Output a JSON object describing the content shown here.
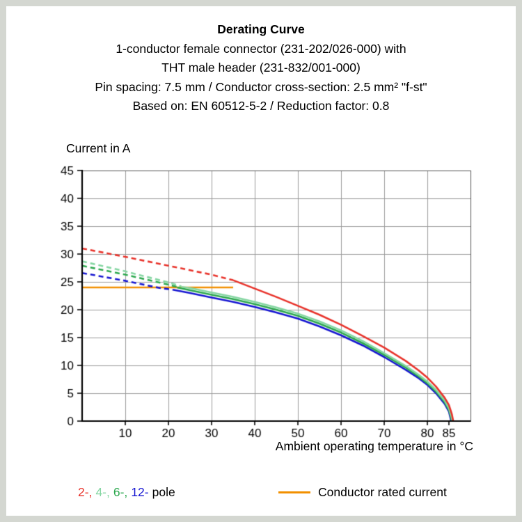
{
  "page": {
    "title": "Derating Curve",
    "subtitle_lines": [
      "1-conductor female connector (231-202/026-000) with",
      "THT male header (231-832/001-000)",
      "Pin spacing: 7.5 mm / Conductor cross-section: 2.5 mm² \"f-st\"",
      "Based on: EN 60512-5-2 / Reduction factor: 0.8"
    ]
  },
  "chart_data": {
    "type": "line",
    "title": "Derating Curve",
    "ylabel": "Current in A",
    "xlabel": "Ambient operating temperature in °C",
    "xlim": [
      0,
      90
    ],
    "ylim": [
      0,
      45
    ],
    "x_ticks": [
      10,
      20,
      30,
      40,
      50,
      60,
      70,
      80,
      85
    ],
    "y_ticks": [
      0,
      5,
      10,
      15,
      20,
      25,
      30,
      35,
      40,
      45
    ],
    "x_gridlines": [
      10,
      20,
      30,
      40,
      50,
      60,
      70,
      80
    ],
    "y_gridlines": [
      5,
      10,
      15,
      20,
      25,
      30,
      35,
      40
    ],
    "grid": true,
    "legend_position": "bottom",
    "series": [
      {
        "name": "Conductor rated current",
        "color": "#f29000",
        "style": "solid",
        "points": [
          [
            0,
            24
          ],
          [
            35,
            24
          ]
        ]
      },
      {
        "name": "12-pole derated (dashed)",
        "color": "#1616d1",
        "style": "dashed",
        "points": [
          [
            0,
            26.6
          ],
          [
            10,
            25.2
          ],
          [
            18,
            23.9
          ],
          [
            21,
            23.6
          ]
        ]
      },
      {
        "name": "12-pole",
        "color": "#1616d1",
        "style": "solid",
        "points": [
          [
            21,
            23.6
          ],
          [
            25,
            23.0
          ],
          [
            30,
            22.2
          ],
          [
            35,
            21.4
          ],
          [
            40,
            20.5
          ],
          [
            45,
            19.5
          ],
          [
            50,
            18.4
          ],
          [
            55,
            17.0
          ],
          [
            60,
            15.4
          ],
          [
            65,
            13.6
          ],
          [
            70,
            11.5
          ],
          [
            75,
            9.2
          ],
          [
            78,
            7.7
          ],
          [
            80,
            6.5
          ],
          [
            82,
            5.0
          ],
          [
            84,
            3.1
          ],
          [
            85,
            1.7
          ],
          [
            85.4,
            0.4
          ],
          [
            85.5,
            0
          ]
        ]
      },
      {
        "name": "6-pole derated (dashed)",
        "color": "#2ca84e",
        "style": "dashed",
        "points": [
          [
            0,
            27.9
          ],
          [
            10,
            26.3
          ],
          [
            20,
            24.5
          ],
          [
            22,
            24.1
          ]
        ]
      },
      {
        "name": "6-pole",
        "color": "#2ca84e",
        "style": "solid",
        "points": [
          [
            22,
            24.0
          ],
          [
            25,
            23.5
          ],
          [
            30,
            22.7
          ],
          [
            35,
            21.9
          ],
          [
            40,
            21.0
          ],
          [
            45,
            20.0
          ],
          [
            50,
            18.9
          ],
          [
            55,
            17.5
          ],
          [
            60,
            15.9
          ],
          [
            65,
            14.0
          ],
          [
            70,
            11.9
          ],
          [
            75,
            9.6
          ],
          [
            78,
            8.0
          ],
          [
            80,
            6.8
          ],
          [
            82,
            5.3
          ],
          [
            84,
            3.4
          ],
          [
            85,
            2.0
          ],
          [
            85.5,
            0.6
          ],
          [
            85.7,
            0
          ]
        ]
      },
      {
        "name": "4-pole derated (dashed)",
        "color": "#85d6a2",
        "style": "dashed",
        "points": [
          [
            0,
            28.7
          ],
          [
            10,
            26.9
          ],
          [
            20,
            24.9
          ],
          [
            23,
            24.2
          ]
        ]
      },
      {
        "name": "4-pole",
        "color": "#85d6a2",
        "style": "solid",
        "points": [
          [
            23,
            24.1
          ],
          [
            25,
            23.9
          ],
          [
            30,
            23.1
          ],
          [
            35,
            22.3
          ],
          [
            40,
            21.4
          ],
          [
            45,
            20.4
          ],
          [
            50,
            19.3
          ],
          [
            55,
            17.9
          ],
          [
            60,
            16.3
          ],
          [
            65,
            14.4
          ],
          [
            70,
            12.2
          ],
          [
            75,
            9.9
          ],
          [
            78,
            8.3
          ],
          [
            80,
            7.1
          ],
          [
            82,
            5.6
          ],
          [
            84,
            3.7
          ],
          [
            85,
            2.3
          ],
          [
            85.6,
            0.8
          ],
          [
            85.8,
            0
          ]
        ]
      },
      {
        "name": "2-pole derated (dashed)",
        "color": "#e8322a",
        "style": "dashed",
        "points": [
          [
            0,
            31
          ],
          [
            10,
            29.5
          ],
          [
            20,
            27.9
          ],
          [
            30,
            26.3
          ],
          [
            35,
            25.3
          ]
        ]
      },
      {
        "name": "2-pole",
        "color": "#e8322a",
        "style": "solid",
        "points": [
          [
            35,
            25.3
          ],
          [
            40,
            23.8
          ],
          [
            45,
            22.3
          ],
          [
            50,
            20.7
          ],
          [
            55,
            19.1
          ],
          [
            60,
            17.3
          ],
          [
            65,
            15.3
          ],
          [
            70,
            13.2
          ],
          [
            75,
            10.8
          ],
          [
            78,
            9.1
          ],
          [
            80,
            7.8
          ],
          [
            82,
            6.2
          ],
          [
            84,
            4.2
          ],
          [
            85,
            2.9
          ],
          [
            85.7,
            1.2
          ],
          [
            86,
            0
          ]
        ]
      }
    ]
  },
  "legend": {
    "poles": [
      {
        "label": "2-,",
        "color": "#e8322a"
      },
      {
        "label": "4-,",
        "color": "#85d6a2"
      },
      {
        "label": "6-,",
        "color": "#2ca84e"
      },
      {
        "label": "12-",
        "color": "#1616d1"
      },
      {
        "label": "pole",
        "color": "#000000"
      }
    ],
    "rated_label": "Conductor rated current",
    "rated_color": "#f29000"
  }
}
